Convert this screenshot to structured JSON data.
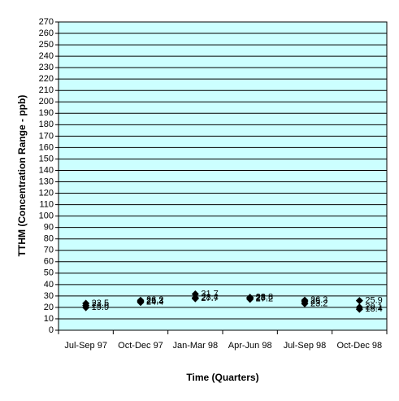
{
  "chart_data": {
    "type": "scatter",
    "x_label": "Time (Quarters)",
    "y_label": "TTHM (Concentration Range - ppb)",
    "categories": [
      "Jul-Sep 97",
      "Oct-Dec 97",
      "Jan-Mar 98",
      "Apr-Jun 98",
      "Jul-Sep 98",
      "Oct-Dec 98"
    ],
    "series": [
      {
        "color": "#000000",
        "values": [
          23.5,
          26.2,
          31.7,
          28.8,
          26.3,
          25.9
        ]
      },
      {
        "color": "#000000",
        "values": [
          21.6,
          25.3,
          28.4,
          28.0,
          25.0,
          20.1
        ]
      },
      {
        "color": "#000000",
        "values": [
          19.9,
          24.4,
          27.7,
          27.2,
          23.2,
          18.4
        ]
      }
    ],
    "ylim": [
      0,
      270
    ],
    "yticks": [
      0,
      10,
      20,
      30,
      40,
      50,
      60,
      70,
      80,
      90,
      100,
      110,
      120,
      130,
      140,
      150,
      160,
      170,
      180,
      190,
      200,
      210,
      220,
      230,
      240,
      250,
      260,
      270
    ],
    "grid": true,
    "plot_background": "#ccffff"
  }
}
